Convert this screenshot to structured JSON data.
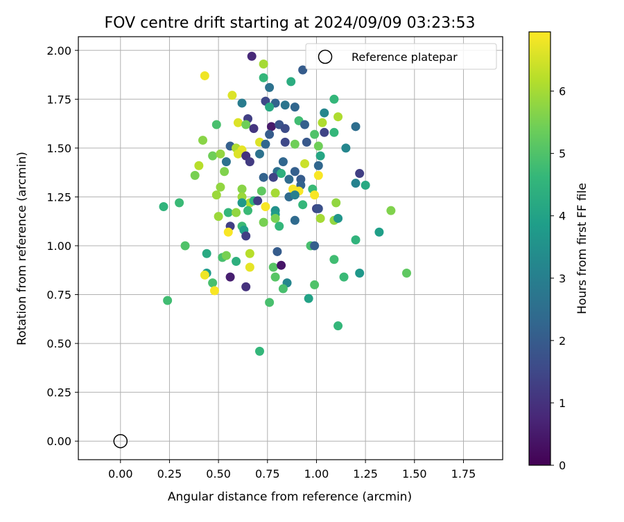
{
  "chart_data": {
    "type": "scatter",
    "title": "FOV centre drift starting at 2024/09/09 03:23:53",
    "xlabel": "Angular distance from reference (arcmin)",
    "ylabel": "Rotation from reference (arcmin)",
    "xlim": [
      -0.215,
      1.95
    ],
    "ylim": [
      -0.095,
      2.07
    ],
    "x_ticks": [
      0.0,
      0.25,
      0.5,
      0.75,
      1.0,
      1.25,
      1.5,
      1.75
    ],
    "x_tick_labels": [
      "0.00",
      "0.25",
      "0.50",
      "0.75",
      "1.00",
      "1.25",
      "1.50",
      "1.75"
    ],
    "y_ticks": [
      0.0,
      0.25,
      0.5,
      0.75,
      1.0,
      1.25,
      1.5,
      1.75,
      2.0
    ],
    "y_tick_labels": [
      "0.00",
      "0.25",
      "0.50",
      "0.75",
      "1.00",
      "1.25",
      "1.50",
      "1.75",
      "2.00"
    ],
    "grid": true,
    "legend": {
      "placement": "top-right",
      "entries": [
        {
          "label": "Reference platepar",
          "marker": "hollow-circle",
          "x": 0.0,
          "y": 0.0
        }
      ]
    },
    "colorbar": {
      "label": "Hours from first FF file",
      "colormap": "viridis",
      "range": [
        0,
        6.95
      ],
      "ticks": [
        0,
        1,
        2,
        3,
        4,
        5,
        6
      ],
      "tick_labels": [
        "0",
        "1",
        "2",
        "3",
        "4",
        "5",
        "6"
      ],
      "colors": [
        "#440154",
        "#482878",
        "#3e4a89",
        "#31688e",
        "#26828e",
        "#1f9e89",
        "#35b779",
        "#6ece58",
        "#b5de2b",
        "#fde725"
      ]
    },
    "points": [
      [
        0.67,
        1.97,
        0.8
      ],
      [
        0.73,
        1.93,
        6.0
      ],
      [
        0.93,
        1.9,
        2.0
      ],
      [
        0.73,
        1.86,
        4.6
      ],
      [
        0.43,
        1.87,
        6.8
      ],
      [
        0.87,
        1.84,
        4.3
      ],
      [
        0.76,
        1.81,
        2.6
      ],
      [
        0.57,
        1.77,
        6.6
      ],
      [
        1.09,
        1.75,
        4.6
      ],
      [
        0.62,
        1.73,
        2.9
      ],
      [
        0.74,
        1.74,
        1.5
      ],
      [
        0.79,
        1.73,
        2.2
      ],
      [
        0.84,
        1.72,
        2.7
      ],
      [
        0.89,
        1.71,
        2.3
      ],
      [
        0.76,
        1.71,
        4.2
      ],
      [
        1.04,
        1.68,
        3.2
      ],
      [
        1.11,
        1.66,
        6.1
      ],
      [
        0.65,
        1.65,
        1.3
      ],
      [
        0.91,
        1.64,
        4.8
      ],
      [
        1.03,
        1.63,
        6.1
      ],
      [
        0.49,
        1.62,
        4.9
      ],
      [
        0.6,
        1.63,
        6.6
      ],
      [
        0.64,
        1.62,
        5.4
      ],
      [
        0.68,
        1.6,
        1.1
      ],
      [
        0.77,
        1.61,
        0.5
      ],
      [
        0.81,
        1.62,
        1.8
      ],
      [
        0.84,
        1.6,
        1.6
      ],
      [
        0.94,
        1.62,
        2.1
      ],
      [
        1.2,
        1.61,
        2.5
      ],
      [
        1.04,
        1.58,
        1.4
      ],
      [
        1.09,
        1.58,
        4.6
      ],
      [
        0.76,
        1.57,
        2.0
      ],
      [
        0.99,
        1.57,
        5.0
      ],
      [
        0.42,
        1.54,
        5.7
      ],
      [
        0.71,
        1.53,
        6.6
      ],
      [
        0.84,
        1.53,
        1.5
      ],
      [
        0.89,
        1.52,
        5.4
      ],
      [
        0.95,
        1.53,
        1.9
      ],
      [
        0.56,
        1.51,
        2.1
      ],
      [
        0.59,
        1.5,
        6.1
      ],
      [
        0.62,
        1.49,
        6.7
      ],
      [
        0.74,
        1.52,
        2.3
      ],
      [
        1.01,
        1.51,
        5.4
      ],
      [
        1.15,
        1.5,
        3.2
      ],
      [
        0.47,
        1.46,
        5.4
      ],
      [
        0.51,
        1.47,
        5.8
      ],
      [
        0.6,
        1.47,
        6.6
      ],
      [
        0.64,
        1.46,
        1.0
      ],
      [
        0.71,
        1.47,
        2.6
      ],
      [
        1.02,
        1.46,
        4.1
      ],
      [
        0.54,
        1.43,
        2.6
      ],
      [
        0.66,
        1.43,
        1.2
      ],
      [
        0.83,
        1.43,
        2.3
      ],
      [
        0.94,
        1.42,
        6.4
      ],
      [
        1.01,
        1.41,
        2.3
      ],
      [
        0.4,
        1.41,
        6.2
      ],
      [
        0.53,
        1.38,
        5.6
      ],
      [
        0.8,
        1.38,
        2.5
      ],
      [
        0.82,
        1.37,
        4.4
      ],
      [
        0.89,
        1.38,
        2.1
      ],
      [
        0.38,
        1.36,
        5.5
      ],
      [
        0.73,
        1.35,
        2.2
      ],
      [
        0.78,
        1.35,
        1.4
      ],
      [
        0.86,
        1.34,
        2.4
      ],
      [
        0.92,
        1.34,
        2.0
      ],
      [
        1.01,
        1.36,
        6.9
      ],
      [
        1.22,
        1.37,
        1.3
      ],
      [
        0.92,
        1.31,
        2.2
      ],
      [
        1.2,
        1.32,
        3.1
      ],
      [
        1.25,
        1.31,
        4.2
      ],
      [
        0.51,
        1.3,
        5.8
      ],
      [
        0.62,
        1.29,
        5.7
      ],
      [
        0.72,
        1.28,
        5.2
      ],
      [
        0.79,
        1.27,
        6.0
      ],
      [
        0.88,
        1.29,
        6.9
      ],
      [
        0.91,
        1.28,
        6.9
      ],
      [
        0.98,
        1.29,
        4.7
      ],
      [
        0.49,
        1.26,
        5.9
      ],
      [
        0.62,
        1.25,
        5.9
      ],
      [
        0.86,
        1.25,
        2.4
      ],
      [
        0.89,
        1.26,
        3.0
      ],
      [
        0.99,
        1.26,
        6.9
      ],
      [
        0.66,
        1.22,
        6.1
      ],
      [
        0.68,
        1.23,
        4.5
      ],
      [
        0.7,
        1.23,
        1.3
      ],
      [
        0.62,
        1.22,
        3.7
      ],
      [
        0.93,
        1.21,
        4.6
      ],
      [
        1.1,
        1.22,
        5.8
      ],
      [
        0.22,
        1.2,
        4.5
      ],
      [
        0.3,
        1.22,
        4.7
      ],
      [
        0.74,
        1.2,
        6.9
      ],
      [
        0.79,
        1.18,
        3.5
      ],
      [
        1.0,
        1.19,
        1.5
      ],
      [
        1.01,
        1.19,
        1.7
      ],
      [
        0.55,
        1.17,
        4.6
      ],
      [
        0.59,
        1.17,
        5.8
      ],
      [
        0.65,
        1.18,
        4.7
      ],
      [
        0.79,
        1.16,
        3.8
      ],
      [
        0.79,
        1.14,
        5.5
      ],
      [
        0.5,
        1.15,
        5.9
      ],
      [
        0.73,
        1.12,
        5.5
      ],
      [
        0.89,
        1.13,
        2.4
      ],
      [
        1.02,
        1.14,
        6.0
      ],
      [
        1.09,
        1.13,
        5.8
      ],
      [
        1.11,
        1.14,
        3.6
      ],
      [
        0.56,
        1.1,
        1.3
      ],
      [
        0.62,
        1.1,
        4.7
      ],
      [
        0.63,
        1.08,
        3.9
      ],
      [
        0.81,
        1.1,
        4.6
      ],
      [
        0.55,
        1.07,
        6.9
      ],
      [
        0.64,
        1.05,
        1.3
      ],
      [
        1.32,
        1.07,
        3.9
      ],
      [
        1.38,
        1.18,
        5.6
      ],
      [
        0.33,
        1.0,
        5.0
      ],
      [
        0.97,
        1.0,
        4.9
      ],
      [
        0.99,
        1.0,
        2.1
      ],
      [
        1.2,
        1.03,
        4.5
      ],
      [
        0.8,
        0.97,
        2.0
      ],
      [
        0.66,
        0.96,
        6.2
      ],
      [
        0.44,
        0.96,
        4.2
      ],
      [
        0.52,
        0.94,
        4.9
      ],
      [
        0.54,
        0.95,
        5.5
      ],
      [
        0.59,
        0.92,
        4.4
      ],
      [
        1.09,
        0.93,
        4.8
      ],
      [
        0.78,
        0.89,
        5.1
      ],
      [
        0.82,
        0.9,
        0.4
      ],
      [
        0.66,
        0.89,
        6.7
      ],
      [
        0.44,
        0.86,
        3.8
      ],
      [
        1.22,
        0.86,
        3.7
      ],
      [
        1.46,
        0.86,
        5.2
      ],
      [
        0.43,
        0.85,
        6.8
      ],
      [
        0.56,
        0.84,
        0.6
      ],
      [
        0.79,
        0.84,
        5.1
      ],
      [
        1.14,
        0.84,
        4.7
      ],
      [
        0.47,
        0.81,
        4.9
      ],
      [
        0.85,
        0.81,
        3.2
      ],
      [
        0.64,
        0.79,
        1.0
      ],
      [
        0.83,
        0.78,
        4.9
      ],
      [
        0.48,
        0.77,
        6.9
      ],
      [
        0.99,
        0.8,
        5.0
      ],
      [
        0.24,
        0.72,
        4.8
      ],
      [
        0.76,
        0.71,
        4.9
      ],
      [
        0.96,
        0.73,
        4.0
      ],
      [
        1.11,
        0.59,
        4.6
      ],
      [
        0.71,
        0.46,
        4.6
      ]
    ]
  }
}
